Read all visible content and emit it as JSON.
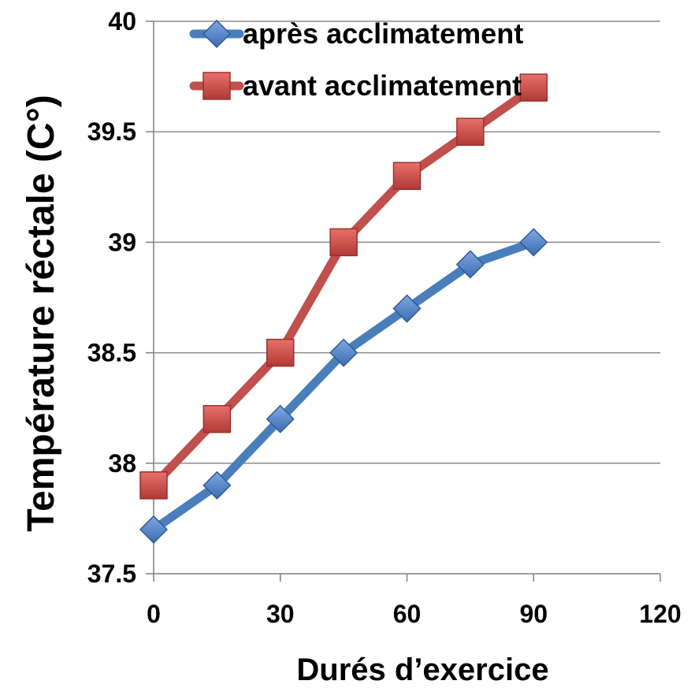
{
  "chart_data": {
    "type": "line",
    "xlabel": "Durés d’exercice",
    "ylabel": "Température  réctale (C°)",
    "xlim": [
      0,
      120
    ],
    "ylim": [
      37.5,
      40
    ],
    "xticks": [
      "0",
      "30",
      "60",
      "90",
      "120"
    ],
    "yticks": [
      "37.5",
      "38",
      "38.5",
      "39",
      "39.5",
      "40"
    ],
    "grid": "horizontal",
    "legend_position": "top",
    "series": [
      {
        "name": "après  acclimatement",
        "color": "#4a7ebb",
        "marker": "diamond",
        "x": [
          0,
          15,
          30,
          45,
          60,
          75,
          90
        ],
        "values": [
          37.7,
          37.9,
          38.2,
          38.5,
          38.7,
          38.9,
          39.0
        ]
      },
      {
        "name": "avant  acclimatement",
        "color": "#c0504d",
        "marker": "square",
        "x": [
          0,
          15,
          30,
          45,
          60,
          75,
          90
        ],
        "values": [
          37.9,
          38.2,
          38.5,
          39.0,
          39.3,
          39.5,
          39.7
        ]
      }
    ]
  }
}
